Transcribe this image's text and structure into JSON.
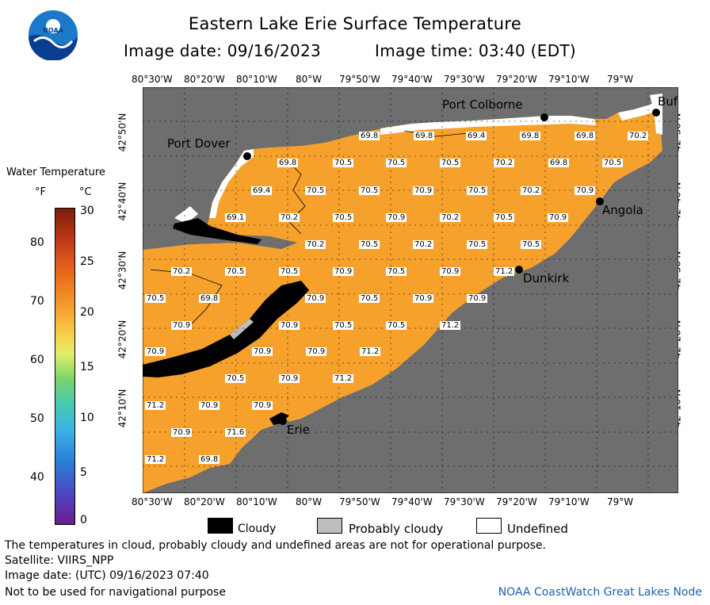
{
  "header": {
    "title": "Eastern Lake Erie Surface Temperature",
    "image_date": "Image date: 09/16/2023",
    "image_time": "Image time: 03:40 (EDT)"
  },
  "logo": {
    "text": "NOAA",
    "icon": "noaa-logo"
  },
  "axes": {
    "lon_labels": [
      "80°30'W",
      "80°20'W",
      "80°10'W",
      "80°W",
      "79°50'W",
      "79°40'W",
      "79°30'W",
      "79°20'W",
      "79°10'W",
      "79°W"
    ],
    "lat_labels": [
      "42°50'N",
      "42°40'N",
      "42°30'N",
      "42°20'N",
      "42°10'N"
    ]
  },
  "legend": {
    "title": "Water Temperature",
    "unit_f": "°F",
    "unit_c": "°C",
    "f_ticks": [
      "80",
      "70",
      "60",
      "50",
      "40"
    ],
    "c_ticks": [
      "30",
      "25",
      "20",
      "15",
      "10",
      "5",
      "0"
    ]
  },
  "cities": [
    {
      "name": "Port Colborne"
    },
    {
      "name": "Port Dover"
    },
    {
      "name": "Buf"
    },
    {
      "name": "Angola"
    },
    {
      "name": "Dunkirk"
    },
    {
      "name": "Erie"
    }
  ],
  "temperatures": [
    "69.8",
    "69.8",
    "69.4",
    "69.8",
    "69.8",
    "70.2",
    "69.8",
    "70.5",
    "70.5",
    "70.5",
    "70.2",
    "69.8",
    "70.5",
    "69.4",
    "70.5",
    "70.5",
    "70.9",
    "70.5",
    "70.2",
    "70.9",
    "69.1",
    "70.2",
    "70.5",
    "70.9",
    "70.2",
    "70.5",
    "70.9",
    "70.2",
    "70.5",
    "70.2",
    "70.5",
    "70.5",
    "70.2",
    "70.5",
    "70.5",
    "70.9",
    "70.5",
    "70.9",
    "71.2",
    "70.5",
    "69.8",
    "70.9",
    "70.5",
    "70.9",
    "70.9",
    "70.9",
    "70.9",
    "70.5",
    "70.5",
    "71.2",
    "70.9",
    "70.9",
    "70.9",
    "71.2",
    "70.5",
    "70.9",
    "71.2",
    "71.2",
    "70.9",
    "70.9",
    "70.9",
    "71.6",
    "71.2",
    "69.8"
  ],
  "key": {
    "cloudy": "Cloudy",
    "probably_cloudy": "Probably cloudy",
    "undefined": "Undefined",
    "colors": {
      "cloudy": "#000000",
      "probably_cloudy": "#bebebe",
      "undefined": "#ffffff"
    }
  },
  "notes": {
    "disclaimer": "The temperatures in cloud, probably cloudy and undefined areas are not for operational purpose.",
    "satellite": "Satellite: VIIRS_NPP",
    "utc_date": "Image date: (UTC) 09/16/2023  07:40",
    "nav": "Not to be used for navigational purpose",
    "credit": "NOAA CoastWatch Great Lakes Node"
  },
  "colors": {
    "land": "#6e6e6e",
    "water": "#f7a12d",
    "grid": "#000000"
  }
}
